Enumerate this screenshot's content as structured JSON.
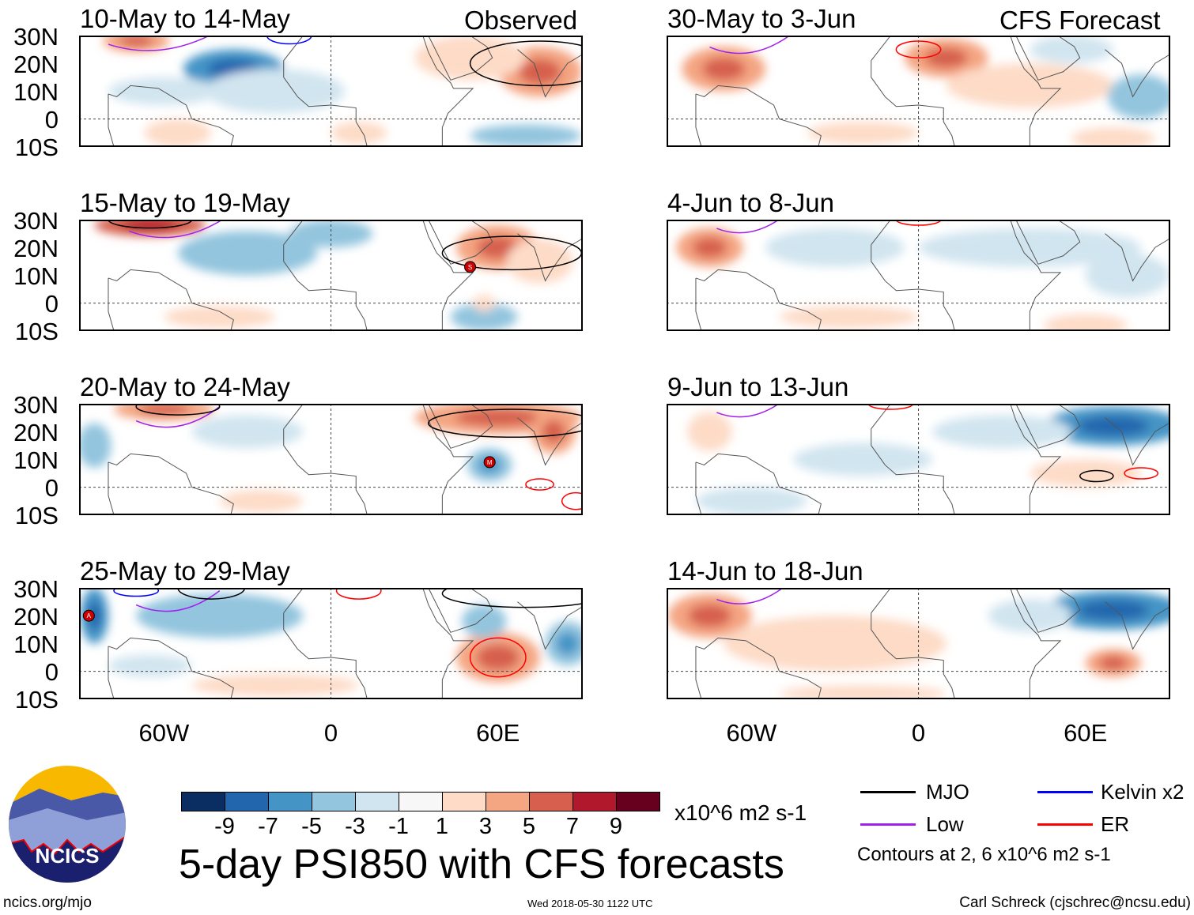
{
  "header": {
    "observed_label": "Observed",
    "forecast_label": "CFS Forecast"
  },
  "lat_ticks": [
    "30N",
    "20N",
    "10N",
    "0",
    "10S"
  ],
  "lon_ticks": [
    "60W",
    "0",
    "60E"
  ],
  "panels": [
    {
      "title": "10-May to 14-May",
      "blobs": [
        [
          -70,
          28,
          12,
          4,
          5
        ],
        [
          -35,
          18,
          18,
          7,
          -5
        ],
        [
          -20,
          10,
          25,
          8,
          -2
        ],
        [
          75,
          17,
          15,
          9,
          5
        ],
        [
          50,
          22,
          20,
          8,
          3
        ],
        [
          -55,
          -5,
          12,
          5,
          3
        ],
        [
          10,
          -5,
          10,
          4,
          2
        ],
        [
          70,
          -6,
          20,
          4,
          -3
        ],
        [
          -60,
          10,
          20,
          5,
          -2
        ]
      ],
      "contours": [
        [
          -15,
          30,
          8,
          3,
          "#0000ff"
        ],
        [
          75,
          20,
          25,
          8,
          "#000"
        ]
      ],
      "lows": [
        [
          -60,
          28,
          40,
          5
        ]
      ]
    },
    {
      "title": "15-May to 19-May",
      "blobs": [
        [
          -65,
          28,
          20,
          4,
          7
        ],
        [
          -30,
          18,
          25,
          8,
          -3
        ],
        [
          0,
          25,
          15,
          5,
          -3
        ],
        [
          60,
          20,
          15,
          8,
          4
        ],
        [
          75,
          15,
          12,
          8,
          3
        ],
        [
          55,
          -5,
          12,
          5,
          -3
        ],
        [
          -40,
          -5,
          20,
          4,
          2
        ],
        [
          55,
          0,
          4,
          3,
          2
        ]
      ],
      "contours": [
        [
          -65,
          30,
          15,
          3,
          "#000"
        ],
        [
          65,
          18,
          25,
          6,
          "#000"
        ]
      ],
      "lows": [
        [
          -55,
          27,
          35,
          5
        ]
      ],
      "storms": [
        [
          50,
          13,
          "S"
        ]
      ]
    },
    {
      "title": "20-May to 24-May",
      "blobs": [
        [
          -60,
          28,
          18,
          4,
          5
        ],
        [
          -30,
          20,
          20,
          6,
          -2
        ],
        [
          60,
          25,
          30,
          6,
          4
        ],
        [
          57,
          8,
          8,
          6,
          -4
        ],
        [
          -85,
          15,
          6,
          8,
          -3
        ],
        [
          -25,
          -5,
          15,
          4,
          2
        ],
        [
          80,
          20,
          8,
          8,
          4
        ]
      ],
      "contours": [
        [
          -55,
          29,
          15,
          3,
          "#000"
        ],
        [
          65,
          23,
          30,
          5,
          "#000"
        ],
        [
          75,
          1,
          5,
          2,
          "#ff0000"
        ],
        [
          88,
          -5,
          5,
          3,
          "#ff0000"
        ]
      ],
      "lows": [
        [
          -55,
          25,
          30,
          5
        ]
      ],
      "storms": [
        [
          57,
          9,
          "M"
        ]
      ]
    },
    {
      "title": "25-May to 29-May",
      "blobs": [
        [
          -85,
          20,
          5,
          10,
          -6
        ],
        [
          -40,
          20,
          30,
          8,
          -3
        ],
        [
          60,
          5,
          15,
          9,
          4
        ],
        [
          85,
          10,
          8,
          8,
          -4
        ],
        [
          55,
          18,
          8,
          6,
          -3
        ],
        [
          -20,
          -5,
          30,
          4,
          2
        ],
        [
          -65,
          2,
          15,
          4,
          -2
        ]
      ],
      "contours": [
        [
          -43,
          30,
          12,
          4,
          "#000"
        ],
        [
          -70,
          29,
          8,
          2,
          "#0000ff"
        ],
        [
          60,
          5,
          10,
          7,
          "#ff0000"
        ],
        [
          10,
          29,
          8,
          3,
          "#ff0000"
        ],
        [
          70,
          28,
          30,
          5,
          "#000"
        ]
      ],
      "lows": [
        [
          -55,
          25,
          30,
          5
        ]
      ],
      "storms": [
        [
          -87,
          20,
          "A"
        ]
      ]
    },
    {
      "title": "30-May to 3-Jun",
      "blobs": [
        [
          -70,
          18,
          15,
          8,
          4
        ],
        [
          10,
          22,
          15,
          7,
          4
        ],
        [
          40,
          12,
          30,
          8,
          2
        ],
        [
          80,
          8,
          12,
          8,
          -3
        ],
        [
          -20,
          -5,
          20,
          4,
          2
        ],
        [
          70,
          -7,
          15,
          4,
          3
        ],
        [
          55,
          25,
          15,
          5,
          -2
        ]
      ],
      "contours": [
        [
          0,
          25,
          8,
          3,
          "#ff0000"
        ]
      ],
      "lows": [
        [
          -60,
          27,
          30,
          5
        ]
      ]
    },
    {
      "title": "4-Jun to 8-Jun",
      "blobs": [
        [
          -75,
          20,
          12,
          7,
          5
        ],
        [
          -30,
          20,
          25,
          7,
          -2
        ],
        [
          40,
          20,
          40,
          7,
          -2
        ],
        [
          75,
          10,
          15,
          8,
          -2
        ],
        [
          -25,
          -5,
          25,
          4,
          2
        ],
        [
          60,
          -8,
          15,
          4,
          2
        ]
      ],
      "contours": [
        [
          0,
          30,
          8,
          2,
          "#ff0000"
        ]
      ],
      "lows": [
        [
          -60,
          28,
          25,
          4
        ]
      ]
    },
    {
      "title": "9-Jun to 13-Jun",
      "blobs": [
        [
          70,
          22,
          25,
          7,
          -5
        ],
        [
          60,
          5,
          20,
          5,
          3
        ],
        [
          -75,
          20,
          8,
          7,
          3
        ],
        [
          -20,
          10,
          25,
          6,
          -2
        ],
        [
          -60,
          -5,
          20,
          5,
          -2
        ],
        [
          30,
          20,
          25,
          6,
          -2
        ]
      ],
      "contours": [
        [
          64,
          4,
          6,
          2,
          "#000"
        ],
        [
          80,
          5,
          6,
          2,
          "#ff0000"
        ],
        [
          -10,
          30,
          8,
          2,
          "#ff0000"
        ]
      ],
      "lows": [
        [
          -60,
          28,
          25,
          4
        ]
      ]
    },
    {
      "title": "14-Jun to 18-Jun",
      "blobs": [
        [
          -75,
          20,
          15,
          8,
          5
        ],
        [
          -30,
          10,
          40,
          10,
          2
        ],
        [
          70,
          22,
          25,
          7,
          -5
        ],
        [
          70,
          3,
          10,
          5,
          4
        ],
        [
          40,
          20,
          15,
          6,
          -2
        ],
        [
          -20,
          -8,
          30,
          3,
          2
        ]
      ],
      "contours": [],
      "lows": [
        [
          -60,
          27,
          25,
          4
        ]
      ]
    }
  ],
  "colorbar": {
    "colors": [
      "#0b2e62",
      "#2266ad",
      "#4594c6",
      "#93c5de",
      "#d1e5f0",
      "#f7f7f7",
      "#fddbc7",
      "#f4a582",
      "#d6604d",
      "#b2182b",
      "#67001f"
    ],
    "labels": [
      "-9",
      "-7",
      "-5",
      "-3",
      "-1",
      "1",
      "3",
      "5",
      "7",
      "9"
    ],
    "units": "x10^6 m2 s-1"
  },
  "legend": {
    "items": [
      {
        "label": "MJO",
        "color": "#000000"
      },
      {
        "label": "Kelvin x2",
        "color": "#0000ff"
      },
      {
        "label": "Low",
        "color": "#a020f0"
      },
      {
        "label": "ER",
        "color": "#ff0000"
      }
    ],
    "note": "Contours at 2, 6 x10^6 m2 s-1"
  },
  "title": "5-day PSI850 with CFS forecasts",
  "logo_text": "NCICS",
  "footer": {
    "url": "ncics.org/mjo",
    "timestamp": "Wed 2018-05-30 1122 UTC",
    "author": "Carl Schreck (cjschrec@ncsu.edu)"
  }
}
